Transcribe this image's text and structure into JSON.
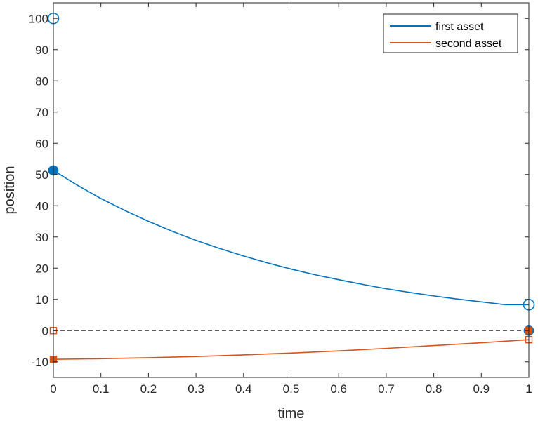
{
  "chart_data": {
    "type": "line",
    "title": "",
    "xlabel": "time",
    "ylabel": "position",
    "xlim": [
      0,
      1
    ],
    "ylim": [
      -15,
      105
    ],
    "xticks": [
      0,
      0.1,
      0.2,
      0.3,
      0.4,
      0.5,
      0.6,
      0.7,
      0.8,
      0.9,
      1
    ],
    "xtick_labels": [
      "0",
      "0.1",
      "0.2",
      "0.3",
      "0.4",
      "0.5",
      "0.6",
      "0.7",
      "0.8",
      "0.9",
      "1"
    ],
    "yticks": [
      -10,
      0,
      10,
      20,
      30,
      40,
      50,
      60,
      70,
      80,
      90,
      100
    ],
    "ytick_labels": [
      "-10",
      "0",
      "10",
      "20",
      "30",
      "40",
      "50",
      "60",
      "70",
      "80",
      "90",
      "100"
    ],
    "grid": false,
    "legend_position": "top-right",
    "reference_line": {
      "y": 0,
      "style": "dashed",
      "color": "#262626"
    },
    "series": [
      {
        "name": "first asset",
        "color": "#0072BD",
        "x": [
          0,
          0.05,
          0.1,
          0.15,
          0.2,
          0.25,
          0.3,
          0.35,
          0.4,
          0.45,
          0.5,
          0.55,
          0.6,
          0.65,
          0.7,
          0.75,
          0.8,
          0.85,
          0.9,
          0.95,
          1
        ],
        "y": [
          51.3,
          46.6,
          42.3,
          38.5,
          35.0,
          31.8,
          28.9,
          26.3,
          23.9,
          21.7,
          19.7,
          17.9,
          16.3,
          14.8,
          13.4,
          12.2,
          11.1,
          10.1,
          9.2,
          8.3,
          8.3
        ],
        "markers": [
          {
            "x": 0,
            "y": 100,
            "shape": "circle",
            "fill": "open"
          },
          {
            "x": 0,
            "y": 51.3,
            "shape": "circle",
            "fill": "filled"
          },
          {
            "x": 1,
            "y": 8.3,
            "shape": "circle",
            "fill": "open"
          },
          {
            "x": 1,
            "y": 0,
            "shape": "circle",
            "fill": "filled"
          }
        ]
      },
      {
        "name": "second asset",
        "color": "#D95319",
        "x": [
          0,
          0.1,
          0.2,
          0.3,
          0.4,
          0.5,
          0.6,
          0.7,
          0.8,
          0.9,
          1
        ],
        "y": [
          -9.2,
          -9.0,
          -8.7,
          -8.3,
          -7.8,
          -7.2,
          -6.5,
          -5.7,
          -4.8,
          -3.9,
          -2.9
        ],
        "markers": [
          {
            "x": 0,
            "y": 0,
            "shape": "square",
            "fill": "open"
          },
          {
            "x": 0,
            "y": -9.2,
            "shape": "square",
            "fill": "filled"
          },
          {
            "x": 1,
            "y": -2.9,
            "shape": "square",
            "fill": "open"
          },
          {
            "x": 1,
            "y": 0,
            "shape": "square",
            "fill": "filled"
          }
        ]
      }
    ]
  }
}
